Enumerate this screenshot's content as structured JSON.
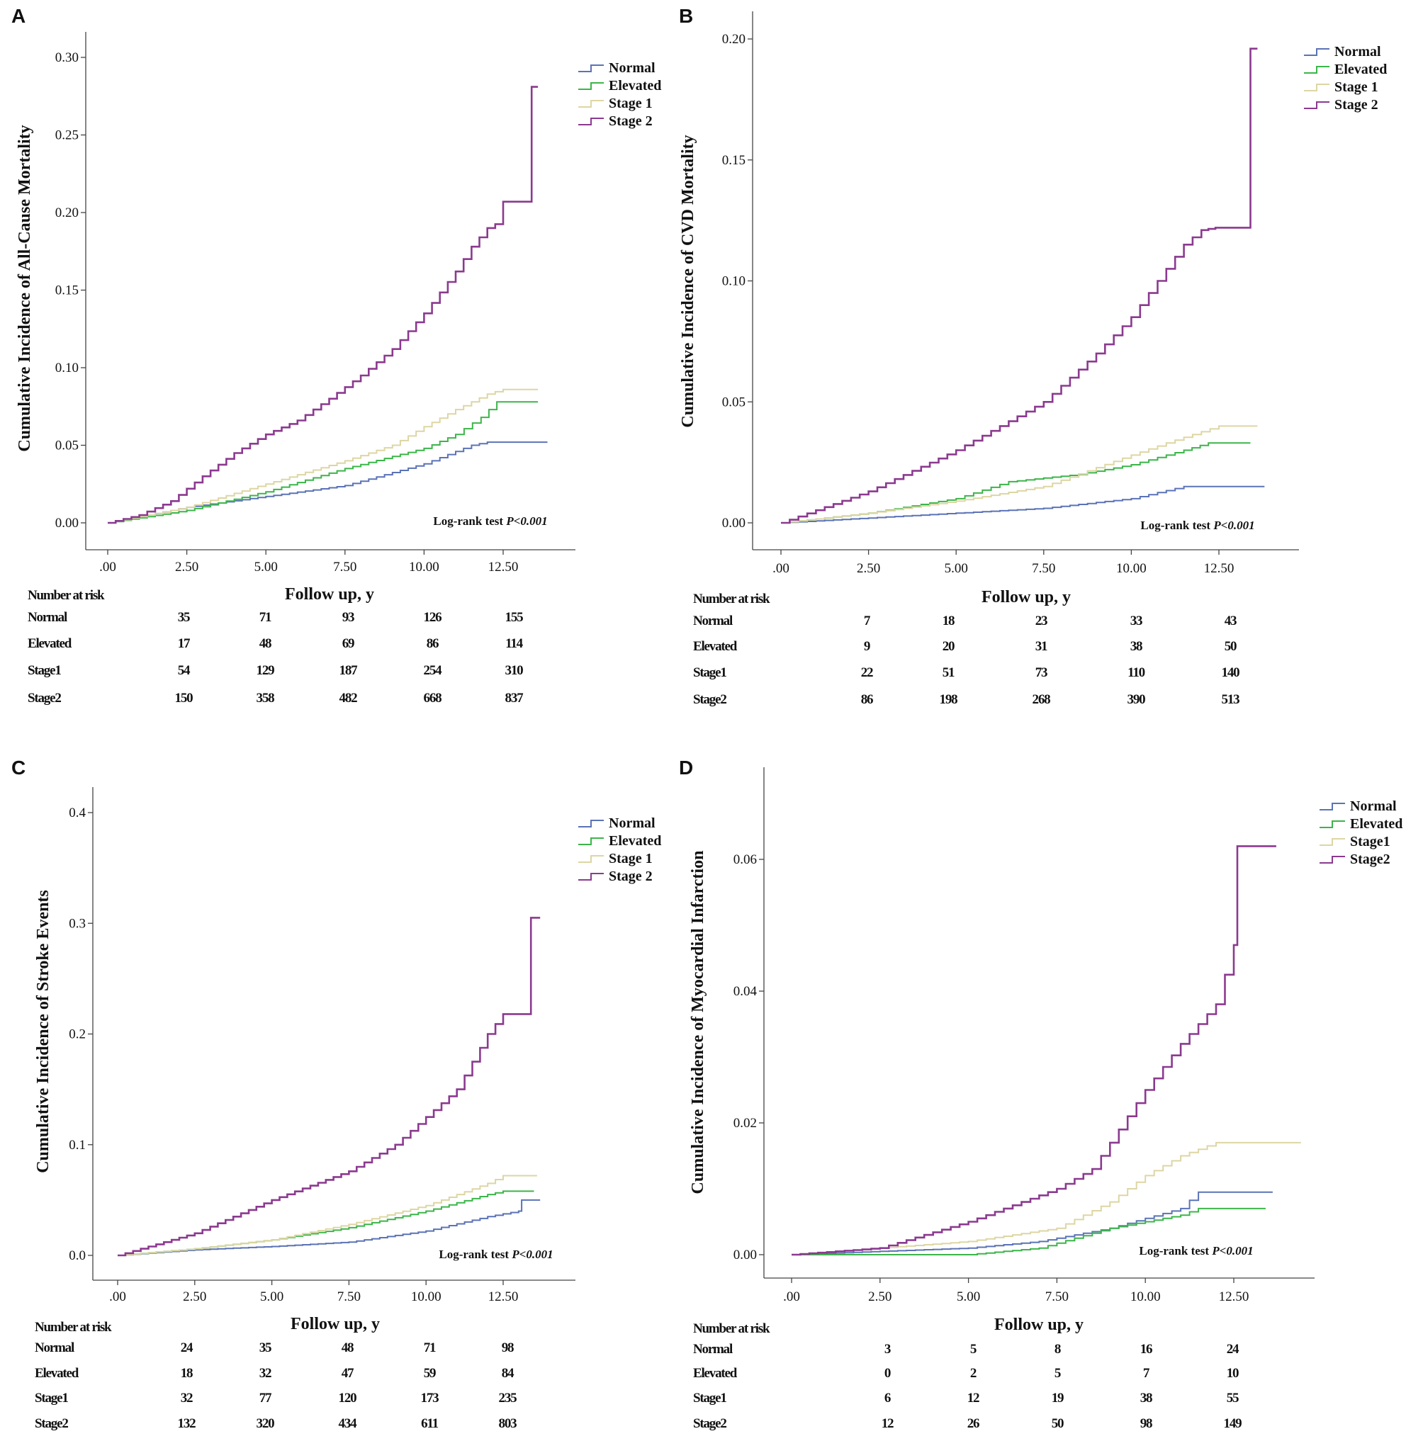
{
  "colors": {
    "Normal": "#5b73b6",
    "Elevated": "#3cb54a",
    "Stage 1": "#ddd6a3",
    "Stage 2": "#8b3a8f"
  },
  "chart_data": [
    {
      "panel": "A",
      "type": "line",
      "ylabel": "Cumulative Incidence of All-Cause Mortality",
      "xlabel": "Follow up, y",
      "xticks": [
        ".00",
        "2.50",
        "5.00",
        "7.50",
        "10.00",
        "12.50"
      ],
      "yticks": [
        "0.00",
        "0.05",
        "0.10",
        "0.15",
        "0.20",
        "0.25",
        "0.30"
      ],
      "ylim": [
        0,
        0.3
      ],
      "legend": [
        "Normal",
        "Elevated",
        "Stage 1",
        "Stage 2"
      ],
      "legend_position": "top-right",
      "annotation": "Log-rank test ",
      "annotation_p": "P<0.001",
      "series": [
        {
          "name": "Normal",
          "points": [
            [
              0,
              0
            ],
            [
              2.5,
              0.01
            ],
            [
              5,
              0.017
            ],
            [
              7.5,
              0.024
            ],
            [
              10,
              0.038
            ],
            [
              11.5,
              0.05
            ],
            [
              12,
              0.052
            ],
            [
              13.9,
              0.052
            ]
          ]
        },
        {
          "name": "Elevated",
          "points": [
            [
              0,
              0
            ],
            [
              2.5,
              0.008
            ],
            [
              5,
              0.02
            ],
            [
              7.5,
              0.035
            ],
            [
              10,
              0.048
            ],
            [
              11,
              0.057
            ],
            [
              11.8,
              0.068
            ],
            [
              12.3,
              0.078
            ],
            [
              13.6,
              0.078
            ]
          ]
        },
        {
          "name": "Stage 1",
          "points": [
            [
              0,
              0
            ],
            [
              2.5,
              0.01
            ],
            [
              5,
              0.025
            ],
            [
              7.5,
              0.04
            ],
            [
              9,
              0.05
            ],
            [
              10,
              0.062
            ],
            [
              11,
              0.073
            ],
            [
              12,
              0.083
            ],
            [
              12.5,
              0.086
            ],
            [
              13.6,
              0.086
            ]
          ]
        },
        {
          "name": "Stage 2",
          "points": [
            [
              0,
              0
            ],
            [
              1,
              0.005
            ],
            [
              2,
              0.014
            ],
            [
              2.5,
              0.022
            ],
            [
              3,
              0.03
            ],
            [
              4,
              0.045
            ],
            [
              5,
              0.057
            ],
            [
              6,
              0.066
            ],
            [
              7,
              0.08
            ],
            [
              8,
              0.095
            ],
            [
              9,
              0.112
            ],
            [
              10,
              0.135
            ],
            [
              11,
              0.162
            ],
            [
              11.5,
              0.178
            ],
            [
              12,
              0.19
            ],
            [
              12.5,
              0.195
            ],
            [
              12.5,
              0.207
            ],
            [
              13.4,
              0.207
            ],
            [
              13.4,
              0.281
            ],
            [
              13.6,
              0.281
            ]
          ]
        }
      ],
      "risk_table": {
        "title": "Number at risk",
        "rows": [
          {
            "label": "Normal",
            "values": [
              "35",
              "71",
              "93",
              "126",
              "155"
            ]
          },
          {
            "label": "Elevated",
            "values": [
              "17",
              "48",
              "69",
              "86",
              "114"
            ]
          },
          {
            "label": "Stage1",
            "values": [
              "54",
              "129",
              "187",
              "254",
              "310"
            ]
          },
          {
            "label": "Stage2",
            "values": [
              "150",
              "358",
              "482",
              "668",
              "837"
            ]
          }
        ]
      }
    },
    {
      "panel": "B",
      "type": "line",
      "ylabel": "Cumulative Incidence of CVD Mortality",
      "xlabel": "Follow up, y",
      "xticks": [
        ".00",
        "2.50",
        "5.00",
        "7.50",
        "10.00",
        "12.50"
      ],
      "yticks": [
        "0.00",
        "0.05",
        "0.10",
        "0.15",
        "0.20"
      ],
      "ylim": [
        0,
        0.2
      ],
      "legend": [
        "Normal",
        "Elevated",
        "Stage 1",
        "Stage 2"
      ],
      "legend_position": "top-right",
      "annotation": "Log-rank test ",
      "annotation_p": "P<0.001",
      "series": [
        {
          "name": "Normal",
          "points": [
            [
              0,
              0
            ],
            [
              2.5,
              0.002
            ],
            [
              5,
              0.004
            ],
            [
              7.5,
              0.006
            ],
            [
              10,
              0.01
            ],
            [
              11.5,
              0.015
            ],
            [
              13.8,
              0.015
            ]
          ]
        },
        {
          "name": "Elevated",
          "points": [
            [
              0,
              0
            ],
            [
              2.5,
              0.004
            ],
            [
              5,
              0.01
            ],
            [
              6.5,
              0.017
            ],
            [
              8.5,
              0.02
            ],
            [
              10,
              0.024
            ],
            [
              11.5,
              0.03
            ],
            [
              12.2,
              0.033
            ],
            [
              13.4,
              0.033
            ]
          ]
        },
        {
          "name": "Stage 1",
          "points": [
            [
              0,
              0
            ],
            [
              2.5,
              0.004
            ],
            [
              5,
              0.009
            ],
            [
              7.5,
              0.015
            ],
            [
              10,
              0.028
            ],
            [
              11,
              0.033
            ],
            [
              12.5,
              0.04
            ],
            [
              13.6,
              0.04
            ]
          ]
        },
        {
          "name": "Stage 2",
          "points": [
            [
              0,
              0
            ],
            [
              2.5,
              0.013
            ],
            [
              5,
              0.03
            ],
            [
              7.5,
              0.05
            ],
            [
              9,
              0.07
            ],
            [
              10,
              0.085
            ],
            [
              11,
              0.105
            ],
            [
              11.5,
              0.115
            ],
            [
              12,
              0.121
            ],
            [
              12.4,
              0.122
            ],
            [
              13.4,
              0.122
            ],
            [
              13.4,
              0.196
            ],
            [
              13.6,
              0.196
            ]
          ]
        }
      ],
      "risk_table": {
        "title": "Number at risk",
        "rows": [
          {
            "label": "Normal",
            "values": [
              "7",
              "18",
              "23",
              "33",
              "43"
            ]
          },
          {
            "label": "Elevated",
            "values": [
              "9",
              "20",
              "31",
              "38",
              "50"
            ]
          },
          {
            "label": "Stage1",
            "values": [
              "22",
              "51",
              "73",
              "110",
              "140"
            ]
          },
          {
            "label": "Stage2",
            "values": [
              "86",
              "198",
              "268",
              "390",
              "513"
            ]
          }
        ]
      }
    },
    {
      "panel": "C",
      "type": "line",
      "ylabel": "Cumulative Incidence of Stroke Events",
      "xlabel": "Follow up, y",
      "xticks": [
        ".00",
        "2.50",
        "5.00",
        "7.50",
        "10.00",
        "12.50"
      ],
      "yticks": [
        "0.0",
        "0.1",
        "0.2",
        "0.3",
        "0.4"
      ],
      "ylim": [
        0,
        0.4
      ],
      "legend": [
        "Normal",
        "Elevated",
        "Stage 1",
        "Stage 2"
      ],
      "legend_position": "top-right",
      "annotation": "Log-rank test ",
      "annotation_p": "P<0.001",
      "series": [
        {
          "name": "Normal",
          "points": [
            [
              0,
              0
            ],
            [
              2.5,
              0.005
            ],
            [
              5,
              0.008
            ],
            [
              7.5,
              0.012
            ],
            [
              10,
              0.022
            ],
            [
              12,
              0.035
            ],
            [
              13,
              0.04
            ],
            [
              13.1,
              0.05
            ],
            [
              13.7,
              0.05
            ]
          ]
        },
        {
          "name": "Elevated",
          "points": [
            [
              0,
              0
            ],
            [
              2.5,
              0.006
            ],
            [
              5,
              0.014
            ],
            [
              7.5,
              0.025
            ],
            [
              10,
              0.04
            ],
            [
              12,
              0.055
            ],
            [
              12.5,
              0.058
            ],
            [
              13.5,
              0.058
            ]
          ]
        },
        {
          "name": "Stage 1",
          "points": [
            [
              0,
              0
            ],
            [
              2.5,
              0.006
            ],
            [
              5,
              0.014
            ],
            [
              7.5,
              0.028
            ],
            [
              10,
              0.045
            ],
            [
              12,
              0.065
            ],
            [
              12.5,
              0.072
            ],
            [
              13.6,
              0.072
            ]
          ]
        },
        {
          "name": "Stage 2",
          "points": [
            [
              0,
              0
            ],
            [
              2.5,
              0.02
            ],
            [
              5,
              0.05
            ],
            [
              7.5,
              0.076
            ],
            [
              9,
              0.1
            ],
            [
              10,
              0.125
            ],
            [
              11,
              0.15
            ],
            [
              12,
              0.2
            ],
            [
              12.5,
              0.218
            ],
            [
              13.4,
              0.218
            ],
            [
              13.4,
              0.305
            ],
            [
              13.7,
              0.305
            ]
          ]
        }
      ],
      "risk_table": {
        "title": "Number at risk",
        "rows": [
          {
            "label": "Normal",
            "values": [
              "24",
              "35",
              "48",
              "71",
              "98"
            ]
          },
          {
            "label": "Elevated",
            "values": [
              "18",
              "32",
              "47",
              "59",
              "84"
            ]
          },
          {
            "label": "Stage1",
            "values": [
              "32",
              "77",
              "120",
              "173",
              "235"
            ]
          },
          {
            "label": "Stage2",
            "values": [
              "132",
              "320",
              "434",
              "611",
              "803"
            ]
          }
        ]
      }
    },
    {
      "panel": "D",
      "type": "line",
      "ylabel": "Cumulative Incidence of Myocardial Infarction",
      "xlabel": "Follow up, y",
      "xticks": [
        ".00",
        "2.50",
        "5.00",
        "7.50",
        "10.00",
        "12.50"
      ],
      "yticks": [
        "0.00",
        "0.02",
        "0.04",
        "0.06"
      ],
      "ylim": [
        0,
        0.06
      ],
      "legend": [
        "Normal",
        "Elevated",
        "Stage1",
        "Stage2"
      ],
      "legend_position": "top-right",
      "annotation": "Log-rank test ",
      "annotation_p": "P<0.001",
      "series": [
        {
          "name": "Normal",
          "points": [
            [
              0,
              0
            ],
            [
              5,
              0.001
            ],
            [
              7,
              0.002
            ],
            [
              9,
              0.004
            ],
            [
              11,
              0.007
            ],
            [
              11.5,
              0.0095
            ],
            [
              13.6,
              0.0095
            ]
          ]
        },
        {
          "name": "Elevated",
          "points": [
            [
              0,
              0
            ],
            [
              5,
              0
            ],
            [
              7,
              0.001
            ],
            [
              9,
              0.004
            ],
            [
              11,
              0.006
            ],
            [
              11.5,
              0.007
            ],
            [
              13.4,
              0.007
            ]
          ]
        },
        {
          "name": "Stage 1",
          "points": [
            [
              0,
              0
            ],
            [
              5,
              0.002
            ],
            [
              7.5,
              0.004
            ],
            [
              9,
              0.008
            ],
            [
              10,
              0.012
            ],
            [
              11,
              0.015
            ],
            [
              12,
              0.017
            ],
            [
              14.4,
              0.017
            ]
          ]
        },
        {
          "name": "Stage 2",
          "points": [
            [
              0,
              0
            ],
            [
              2.5,
              0.001
            ],
            [
              5,
              0.005
            ],
            [
              7.5,
              0.01
            ],
            [
              8.5,
              0.013
            ],
            [
              9,
              0.017
            ],
            [
              10,
              0.025
            ],
            [
              11,
              0.032
            ],
            [
              12,
              0.038
            ],
            [
              12.5,
              0.047
            ],
            [
              12.6,
              0.051
            ],
            [
              12.6,
              0.062
            ],
            [
              13.7,
              0.062
            ]
          ]
        }
      ],
      "risk_table": {
        "title": "Number at risk",
        "rows": [
          {
            "label": "Normal",
            "values": [
              "3",
              "5",
              "8",
              "16",
              "24"
            ]
          },
          {
            "label": "Elevated",
            "values": [
              "0",
              "2",
              "5",
              "7",
              "10"
            ]
          },
          {
            "label": "Stage1",
            "values": [
              "6",
              "12",
              "19",
              "38",
              "55"
            ]
          },
          {
            "label": "Stage2",
            "values": [
              "12",
              "26",
              "50",
              "98",
              "149"
            ]
          }
        ]
      }
    }
  ]
}
